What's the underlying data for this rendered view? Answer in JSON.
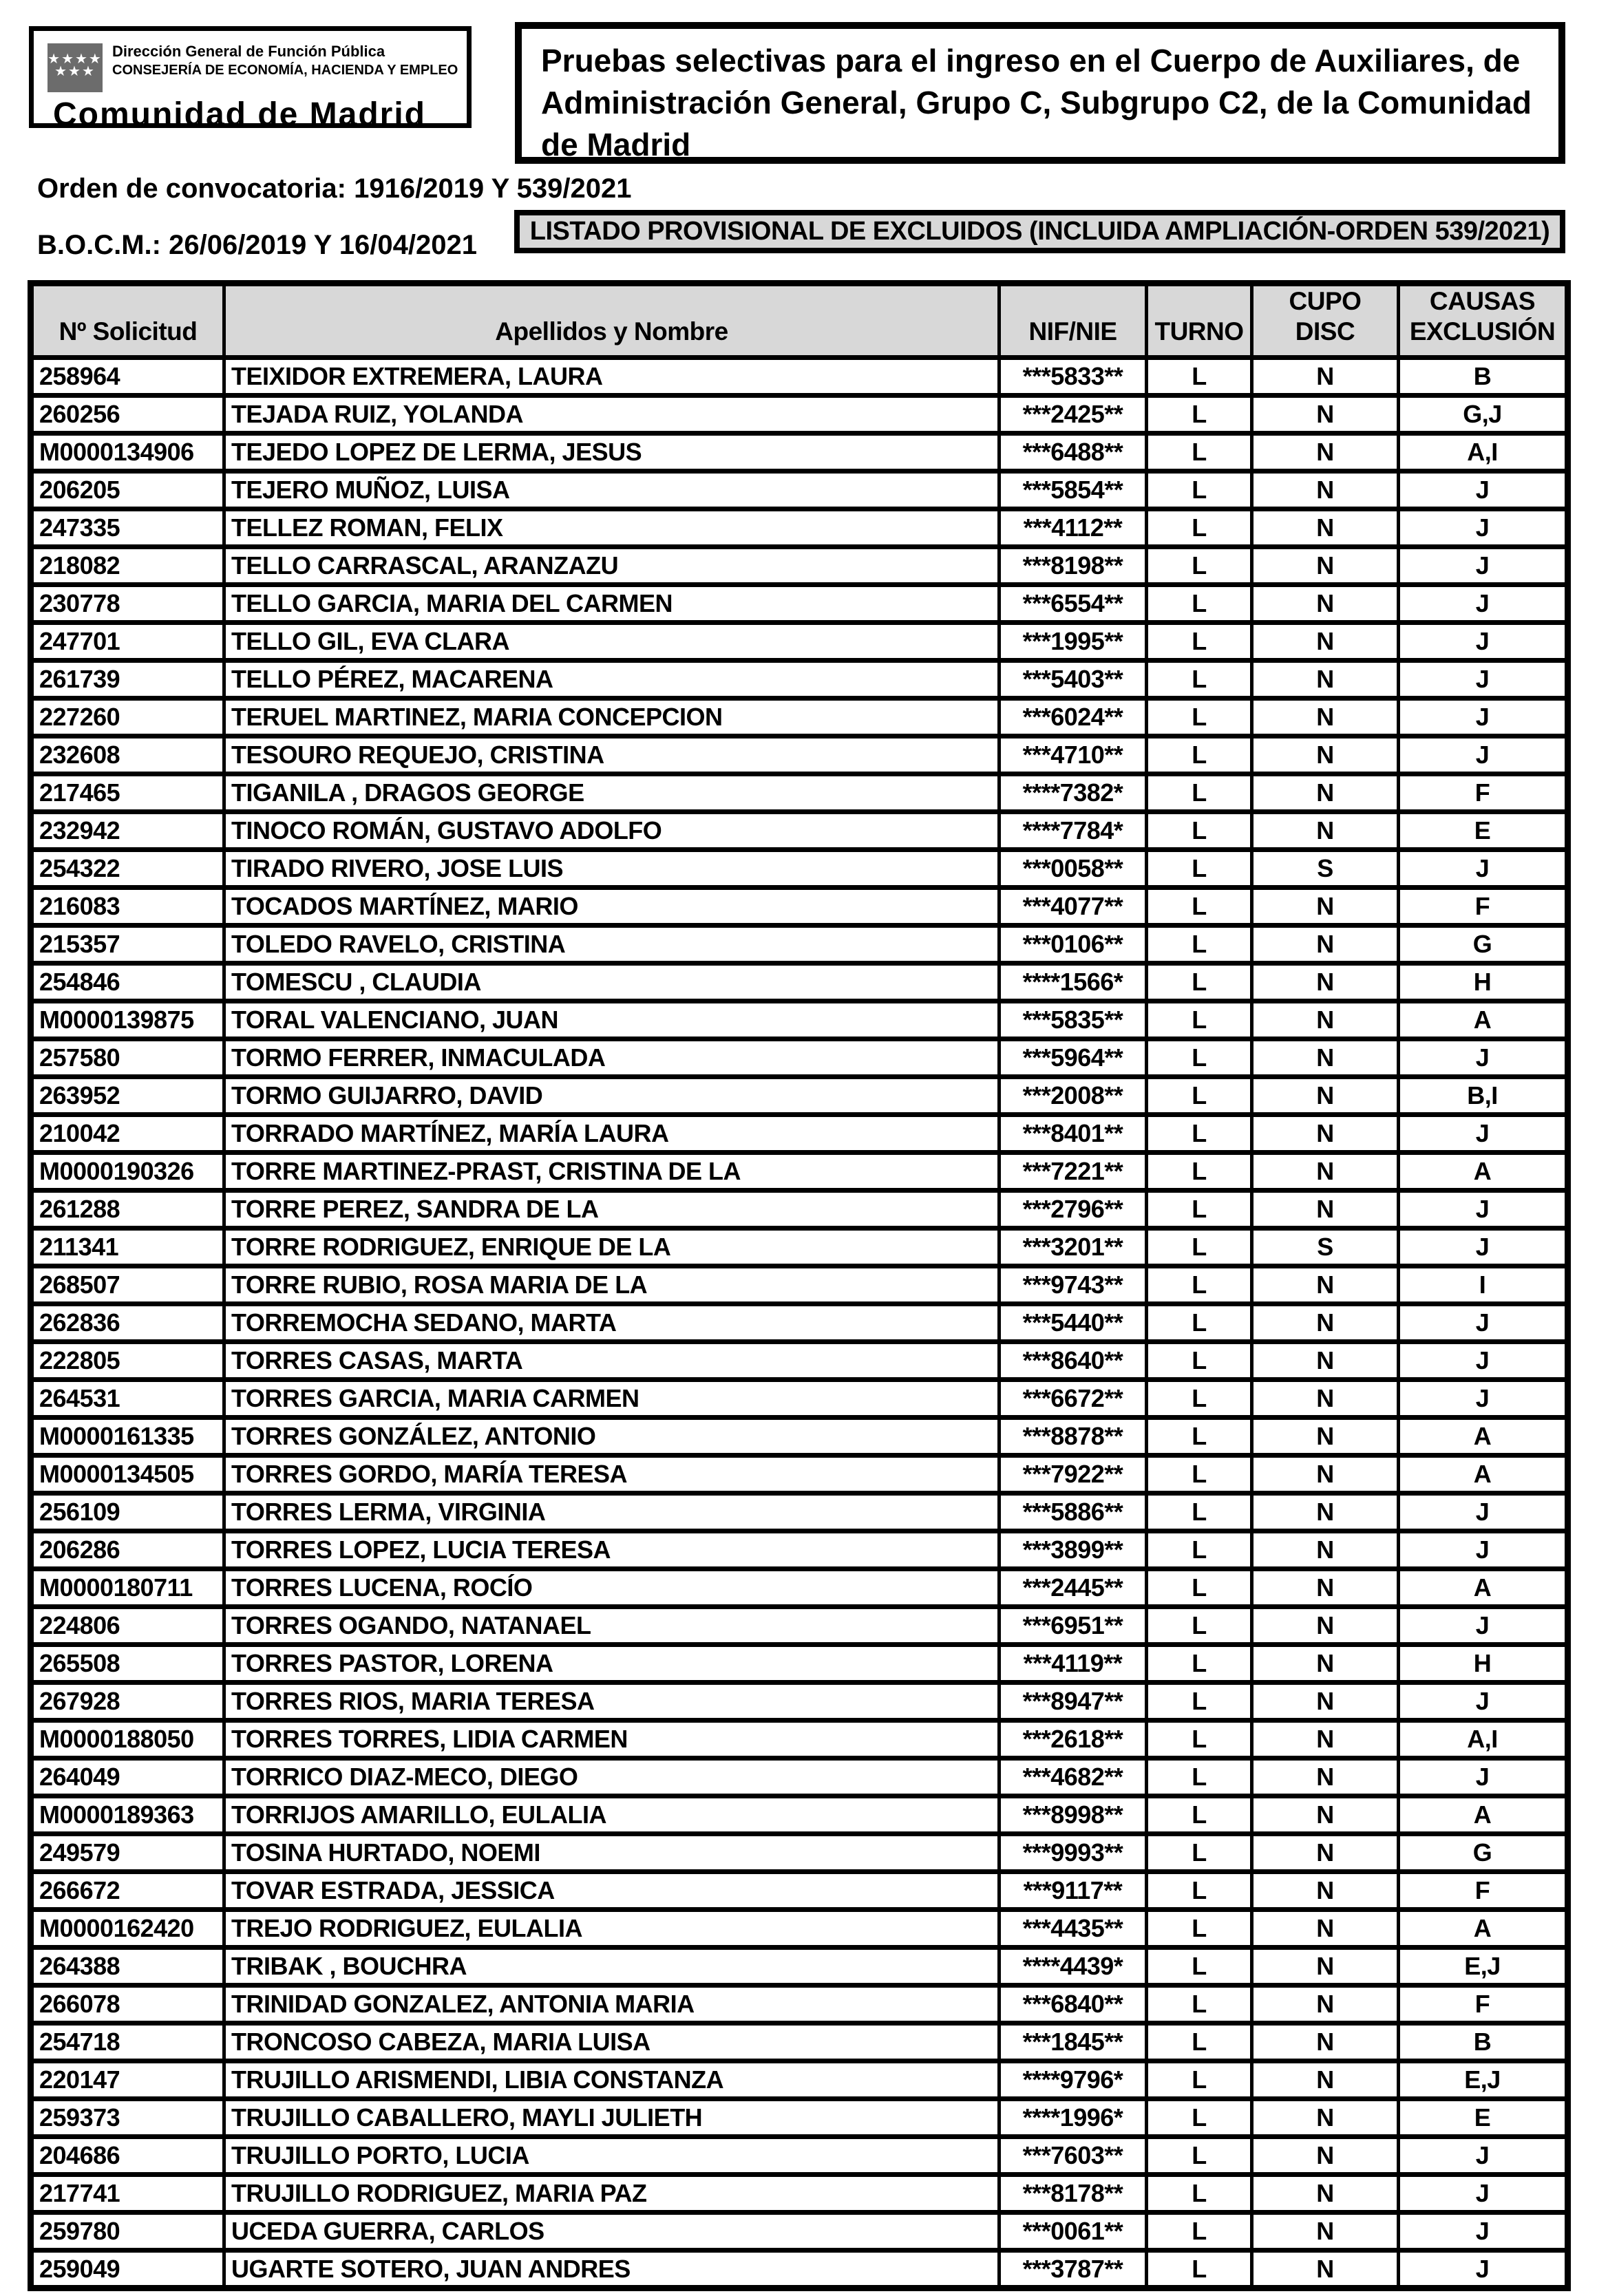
{
  "colors": {
    "border": "#000000",
    "header_bg": "#d8d8d8",
    "banner_bg": "#d8d8d8",
    "flag_bg": "#6c6c6c",
    "text": "#000000",
    "page_bg": "#ffffff"
  },
  "logo": {
    "stars_top": "★★★★",
    "stars_bottom": "★★★",
    "line1": "Dirección General de Función Pública",
    "line2": "CONSEJERÍA DE ECONOMÍA, HACIENDA Y EMPLEO",
    "brand": "Comunidad de Madrid"
  },
  "header": {
    "title": "Pruebas selectivas para el ingreso en el Cuerpo de Auxiliares, de Administración General, Grupo C, Subgrupo C2, de la Comunidad de Madrid",
    "order_line": "Orden de convocatoria: 1916/2019 Y 539/2021",
    "bocm_line": "B.O.C.M.: 26/06/2019 Y 16/04/2021",
    "banner": "LISTADO PROVISIONAL DE EXCLUIDOS (INCLUIDA AMPLIACIÓN-ORDEN 539/2021)"
  },
  "table": {
    "headers": [
      "Nº Solicitud",
      "Apellidos y Nombre",
      "NIF/NIE",
      "TURNO",
      "CUPO DISC",
      "CAUSAS EXCLUSIÓN"
    ],
    "col_names": [
      "cell-solicitud",
      "cell-nombre",
      "cell-nif",
      "cell-turno",
      "cell-cupo-disc",
      "cell-causas-exclusion"
    ],
    "rows": [
      [
        "258964",
        "TEIXIDOR EXTREMERA, LAURA",
        "***5833**",
        "L",
        "N",
        "B"
      ],
      [
        "260256",
        "TEJADA RUIZ, YOLANDA",
        "***2425**",
        "L",
        "N",
        "G,J"
      ],
      [
        "M0000134906",
        "TEJEDO LOPEZ DE LERMA, JESUS",
        "***6488**",
        "L",
        "N",
        "A,I"
      ],
      [
        "206205",
        "TEJERO MUÑOZ, LUISA",
        "***5854**",
        "L",
        "N",
        "J"
      ],
      [
        "247335",
        "TELLEZ ROMAN, FELIX",
        "***4112**",
        "L",
        "N",
        "J"
      ],
      [
        "218082",
        "TELLO CARRASCAL, ARANZAZU",
        "***8198**",
        "L",
        "N",
        "J"
      ],
      [
        "230778",
        "TELLO GARCIA, MARIA DEL CARMEN",
        "***6554**",
        "L",
        "N",
        "J"
      ],
      [
        "247701",
        "TELLO GIL, EVA CLARA",
        "***1995**",
        "L",
        "N",
        "J"
      ],
      [
        "261739",
        "TELLO PÉREZ, MACARENA",
        "***5403**",
        "L",
        "N",
        "J"
      ],
      [
        "227260",
        "TERUEL MARTINEZ, MARIA CONCEPCION",
        "***6024**",
        "L",
        "N",
        "J"
      ],
      [
        "232608",
        "TESOURO REQUEJO, CRISTINA",
        "***4710**",
        "L",
        "N",
        "J"
      ],
      [
        "217465",
        "TIGANILA , DRAGOS GEORGE",
        "****7382*",
        "L",
        "N",
        "F"
      ],
      [
        "232942",
        "TINOCO ROMÁN, GUSTAVO ADOLFO",
        "****7784*",
        "L",
        "N",
        "E"
      ],
      [
        "254322",
        "TIRADO RIVERO, JOSE LUIS",
        "***0058**",
        "L",
        "S",
        "J"
      ],
      [
        "216083",
        "TOCADOS MARTÍNEZ, MARIO",
        "***4077**",
        "L",
        "N",
        "F"
      ],
      [
        "215357",
        "TOLEDO RAVELO, CRISTINA",
        "***0106**",
        "L",
        "N",
        "G"
      ],
      [
        "254846",
        "TOMESCU , CLAUDIA",
        "****1566*",
        "L",
        "N",
        "H"
      ],
      [
        "M0000139875",
        "TORAL VALENCIANO, JUAN",
        "***5835**",
        "L",
        "N",
        "A"
      ],
      [
        "257580",
        "TORMO FERRER, INMACULADA",
        "***5964**",
        "L",
        "N",
        "J"
      ],
      [
        "263952",
        "TORMO GUIJARRO, DAVID",
        "***2008**",
        "L",
        "N",
        "B,I"
      ],
      [
        "210042",
        "TORRADO MARTÍNEZ, MARÍA LAURA",
        "***8401**",
        "L",
        "N",
        "J"
      ],
      [
        "M0000190326",
        "TORRE MARTINEZ-PRAST, CRISTINA DE LA",
        "***7221**",
        "L",
        "N",
        "A"
      ],
      [
        "261288",
        "TORRE PEREZ, SANDRA DE LA",
        "***2796**",
        "L",
        "N",
        "J"
      ],
      [
        "211341",
        "TORRE RODRIGUEZ, ENRIQUE DE LA",
        "***3201**",
        "L",
        "S",
        "J"
      ],
      [
        "268507",
        "TORRE RUBIO, ROSA MARIA DE LA",
        "***9743**",
        "L",
        "N",
        "I"
      ],
      [
        "262836",
        "TORREMOCHA SEDANO, MARTA",
        "***5440**",
        "L",
        "N",
        "J"
      ],
      [
        "222805",
        "TORRES CASAS, MARTA",
        "***8640**",
        "L",
        "N",
        "J"
      ],
      [
        "264531",
        "TORRES GARCIA, MARIA CARMEN",
        "***6672**",
        "L",
        "N",
        "J"
      ],
      [
        "M0000161335",
        "TORRES GONZÁLEZ, ANTONIO",
        "***8878**",
        "L",
        "N",
        "A"
      ],
      [
        "M0000134505",
        "TORRES GORDO, MARÍA TERESA",
        "***7922**",
        "L",
        "N",
        "A"
      ],
      [
        "256109",
        "TORRES LERMA, VIRGINIA",
        "***5886**",
        "L",
        "N",
        "J"
      ],
      [
        "206286",
        "TORRES LOPEZ, LUCIA TERESA",
        "***3899**",
        "L",
        "N",
        "J"
      ],
      [
        "M0000180711",
        "TORRES LUCENA, ROCÍO",
        "***2445**",
        "L",
        "N",
        "A"
      ],
      [
        "224806",
        "TORRES OGANDO, NATANAEL",
        "***6951**",
        "L",
        "N",
        "J"
      ],
      [
        "265508",
        "TORRES PASTOR, LORENA",
        "***4119**",
        "L",
        "N",
        "H"
      ],
      [
        "267928",
        "TORRES RIOS, MARIA TERESA",
        "***8947**",
        "L",
        "N",
        "J"
      ],
      [
        "M0000188050",
        "TORRES TORRES, LIDIA CARMEN",
        "***2618**",
        "L",
        "N",
        "A,I"
      ],
      [
        "264049",
        "TORRICO DIAZ-MECO, DIEGO",
        "***4682**",
        "L",
        "N",
        "J"
      ],
      [
        "M0000189363",
        "TORRIJOS AMARILLO, EULALIA",
        "***8998**",
        "L",
        "N",
        "A"
      ],
      [
        "249579",
        "TOSINA HURTADO, NOEMI",
        "***9993**",
        "L",
        "N",
        "G"
      ],
      [
        "266672",
        "TOVAR ESTRADA, JESSICA",
        "***9117**",
        "L",
        "N",
        "F"
      ],
      [
        "M0000162420",
        "TREJO RODRIGUEZ, EULALIA",
        "***4435**",
        "L",
        "N",
        "A"
      ],
      [
        "264388",
        "TRIBAK , BOUCHRA",
        "****4439*",
        "L",
        "N",
        "E,J"
      ],
      [
        "266078",
        "TRINIDAD GONZALEZ, ANTONIA MARIA",
        "***6840**",
        "L",
        "N",
        "F"
      ],
      [
        "254718",
        "TRONCOSO CABEZA, MARIA LUISA",
        "***1845**",
        "L",
        "N",
        "B"
      ],
      [
        "220147",
        "TRUJILLO ARISMENDI, LIBIA CONSTANZA",
        "****9796*",
        "L",
        "N",
        "E,J"
      ],
      [
        "259373",
        "TRUJILLO CABALLERO, MAYLI JULIETH",
        "****1996*",
        "L",
        "N",
        "E"
      ],
      [
        "204686",
        "TRUJILLO PORTO, LUCIA",
        "***7603**",
        "L",
        "N",
        "J"
      ],
      [
        "217741",
        "TRUJILLO RODRIGUEZ, MARIA PAZ",
        "***8178**",
        "L",
        "N",
        "J"
      ],
      [
        "259780",
        "UCEDA GUERRA, CARLOS",
        "***0061**",
        "L",
        "N",
        "J"
      ],
      [
        "259049",
        "UGARTE SOTERO, JUAN ANDRES",
        "***3787**",
        "L",
        "N",
        "J"
      ]
    ]
  }
}
